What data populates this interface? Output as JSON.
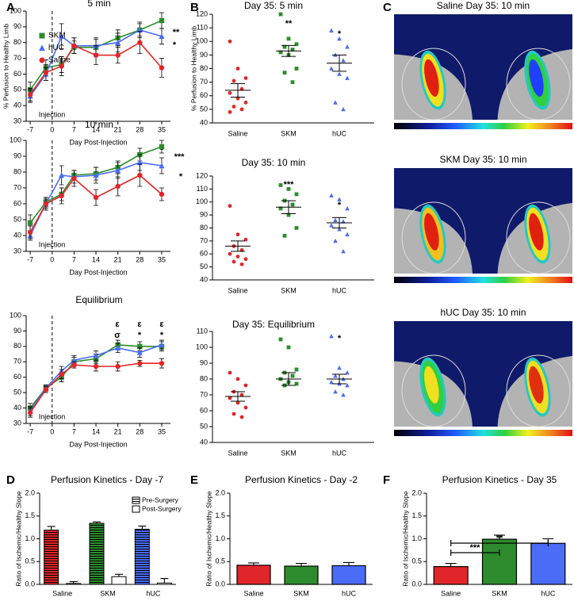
{
  "panel_labels": [
    "A",
    "B",
    "C",
    "D",
    "E",
    "F"
  ],
  "images": [
    {
      "title": "Saline Day 35: 10 min"
    },
    {
      "title": "SKM Day 35: 10 min"
    },
    {
      "title": "hUC Day 35: 10 min"
    }
  ],
  "chart_data": [
    {
      "type": "line",
      "title": "5 min",
      "xlabel": "Day Post-Injection",
      "ylabel": "% Perfusion to Healthy Limb",
      "x": [
        -7,
        -2,
        3,
        7,
        14,
        21,
        28,
        35
      ],
      "xlim": [
        -8.3,
        37.8
      ],
      "xticks": [
        -7,
        0,
        7,
        14,
        21,
        28,
        35
      ],
      "ylim": [
        30,
        100
      ],
      "yticks": [
        30,
        40,
        50,
        60,
        70,
        80,
        90,
        100
      ],
      "vline": 0,
      "vline_label": "Injection",
      "legend": "upper left",
      "series": [
        {
          "name": "SKM",
          "color": "#2e8b2e",
          "marker": "square",
          "values": [
            50,
            64,
            66,
            77,
            77,
            83,
            88,
            94
          ],
          "errors": [
            5,
            5,
            5,
            4,
            5,
            5,
            4,
            5
          ]
        },
        {
          "name": "hUC",
          "color": "#4a6cf7",
          "marker": "triangle",
          "values": [
            46,
            60,
            84,
            78,
            78,
            80,
            88,
            84
          ],
          "errors": [
            4,
            4,
            8,
            5,
            5,
            6,
            5,
            5
          ]
        },
        {
          "name": "Saline",
          "color": "#e0262a",
          "marker": "circle",
          "values": [
            47,
            61,
            65,
            78,
            72,
            72,
            80,
            64
          ],
          "errors": [
            4,
            5,
            6,
            5,
            6,
            5,
            7,
            6
          ]
        }
      ],
      "annotations": [
        {
          "text": "**",
          "color": "#2e8b2e"
        },
        {
          "text": "*",
          "color": "#4a6cf7"
        }
      ]
    },
    {
      "type": "line",
      "title": "10 min",
      "xlabel": "Day Post-Injection",
      "x": [
        -7,
        -2,
        3,
        7,
        14,
        21,
        28,
        35
      ],
      "xlim": [
        -8.3,
        37.8
      ],
      "xticks": [
        -7,
        0,
        7,
        14,
        21,
        28,
        35
      ],
      "ylim": [
        30,
        100
      ],
      "yticks": [
        30,
        40,
        50,
        60,
        70,
        80,
        90,
        100
      ],
      "vline": 0,
      "vline_label": "Injection",
      "series": [
        {
          "name": "SKM",
          "color": "#2e8b2e",
          "marker": "square",
          "values": [
            48,
            61,
            66,
            78,
            79,
            83,
            91,
            96
          ],
          "errors": [
            5,
            3,
            4,
            3,
            4,
            4,
            4,
            4
          ]
        },
        {
          "name": "hUC",
          "color": "#4a6cf7",
          "marker": "triangle",
          "values": [
            40,
            60,
            78,
            77,
            78,
            81,
            86,
            84
          ],
          "errors": [
            3,
            4,
            6,
            4,
            5,
            5,
            5,
            5
          ]
        },
        {
          "name": "Saline",
          "color": "#e0262a",
          "marker": "circle",
          "values": [
            42,
            60,
            65,
            76,
            64,
            71,
            78,
            66
          ],
          "errors": [
            4,
            3,
            5,
            5,
            5,
            6,
            7,
            4
          ]
        }
      ],
      "annotations": [
        {
          "text": "ε",
          "color": "#2e8b2e"
        },
        {
          "text": "***",
          "color": "#2e8b2e"
        },
        {
          "text": "*",
          "color": "#4a6cf7"
        }
      ]
    },
    {
      "type": "line",
      "title": "Equilibrium",
      "xlabel": "Day Post-Injection",
      "x": [
        -7,
        -2,
        3,
        7,
        14,
        21,
        28,
        35
      ],
      "xlim": [
        -8.3,
        37.8
      ],
      "xticks": [
        -7,
        0,
        7,
        14,
        21,
        28,
        35
      ],
      "ylim": [
        30,
        100
      ],
      "yticks": [
        30,
        40,
        50,
        60,
        70,
        80,
        90,
        100
      ],
      "vline": 0,
      "vline_label": "Injection",
      "series": [
        {
          "name": "SKM",
          "color": "#2e8b2e",
          "marker": "square",
          "values": [
            40,
            53,
            60,
            70,
            72,
            81,
            80,
            80
          ],
          "errors": [
            3,
            2,
            3,
            3,
            3,
            3,
            3,
            3
          ]
        },
        {
          "name": "hUC",
          "color": "#4a6cf7",
          "marker": "triangle",
          "values": [
            38,
            53,
            64,
            71,
            74,
            79,
            76,
            81
          ],
          "errors": [
            3,
            2,
            3,
            3,
            3,
            3,
            3,
            3
          ]
        },
        {
          "name": "Saline",
          "color": "#e0262a",
          "marker": "circle",
          "values": [
            37,
            52,
            62,
            68,
            67,
            67,
            69,
            69
          ],
          "errors": [
            3,
            2,
            3,
            2,
            3,
            3,
            2,
            3
          ]
        }
      ],
      "annotations": [
        {
          "text": "ε",
          "color": "#2e8b2e"
        },
        {
          "text": "ε",
          "color": "#2e8b2e"
        },
        {
          "text": "ε",
          "color": "#2e8b2e"
        },
        {
          "text": "σ",
          "color": "#000000"
        },
        {
          "text": "*",
          "color": "#2e8b2e"
        },
        {
          "text": "*",
          "color": "#4a6cf7"
        }
      ]
    },
    {
      "type": "strip",
      "title": "Day 35: 5 min",
      "ylabel": "% Perfusion to Healthy Limb",
      "categories": [
        "Saline",
        "SKM",
        "hUC"
      ],
      "colors": [
        "#e0262a",
        "#2e8b2e",
        "#4a6cf7"
      ],
      "markers": [
        "circle",
        "square",
        "triangle"
      ],
      "ylim": [
        40,
        120
      ],
      "yticks": [
        40,
        50,
        60,
        70,
        80,
        90,
        100,
        110,
        120
      ],
      "points": [
        [
          100,
          80,
          73,
          71,
          65,
          62,
          58,
          55,
          52,
          50,
          48
        ],
        [
          120,
          102,
          98,
          96,
          94,
          92,
          90,
          80,
          77,
          70
        ],
        [
          108,
          102,
          96,
          90,
          86,
          80,
          76,
          73,
          55,
          50
        ]
      ],
      "mean": [
        64,
        93,
        84
      ],
      "sem": [
        5,
        4,
        6
      ],
      "annotations": [
        {
          "text": "**",
          "color": "#000000"
        },
        {
          "text": "*",
          "color": "#000000"
        }
      ]
    },
    {
      "type": "strip",
      "title": "Day 35: 10 min",
      "categories": [
        "Saline",
        "SKM",
        "hUC"
      ],
      "colors": [
        "#e0262a",
        "#2e8b2e",
        "#4a6cf7"
      ],
      "markers": [
        "circle",
        "square",
        "triangle"
      ],
      "ylim": [
        40,
        120
      ],
      "yticks": [
        40,
        50,
        60,
        70,
        80,
        90,
        100,
        110,
        120
      ],
      "points": [
        [
          97,
          75,
          71,
          66,
          63,
          60,
          58,
          56,
          54,
          52
        ],
        [
          113,
          110,
          106,
          101,
          98,
          95,
          90,
          80,
          74
        ],
        [
          105,
          102,
          95,
          86,
          85,
          82,
          79,
          75,
          70,
          62
        ]
      ],
      "mean": [
        66,
        96,
        84
      ],
      "sem": [
        4,
        5,
        4
      ],
      "annotations": [
        {
          "text": "***",
          "color": "#000000"
        },
        {
          "text": "*",
          "color": "#000000"
        }
      ]
    },
    {
      "type": "strip",
      "title": "Day 35: Equilibrium",
      "categories": [
        "Saline",
        "SKM",
        "hUC"
      ],
      "colors": [
        "#e0262a",
        "#2e8b2e",
        "#4a6cf7"
      ],
      "markers": [
        "circle",
        "square",
        "triangle"
      ],
      "ylim": [
        40,
        110
      ],
      "yticks": [
        40,
        50,
        60,
        70,
        80,
        90,
        100,
        110
      ],
      "points": [
        [
          84,
          80,
          76,
          72,
          70,
          68,
          65,
          62,
          58,
          56
        ],
        [
          105,
          100,
          86,
          84,
          82,
          80,
          78,
          77,
          76
        ],
        [
          107,
          87,
          84,
          82,
          80,
          78,
          77,
          76,
          72,
          70
        ]
      ],
      "mean": [
        69,
        80,
        80
      ],
      "sem": [
        3,
        4,
        3
      ],
      "annotations": [
        {
          "text": "*",
          "color": "#000000"
        }
      ]
    },
    {
      "type": "groupbar",
      "title": "Perfusion Kinetics - Day -7",
      "ylabel": "Ratio of Ischemic/Healthy Slope",
      "categories": [
        "Saline",
        "SKM",
        "hUC"
      ],
      "colors": [
        "#e0262a",
        "#2e8b2e",
        "#4a6cf7"
      ],
      "ylim": [
        0,
        2
      ],
      "yticks": [
        {
          "value": 0,
          "label": "0.0"
        },
        0.5,
        {
          "value": 1,
          "label": "1.0"
        },
        1.5,
        {
          "value": 2,
          "label": "2.0"
        }
      ],
      "legend": "upper right",
      "series": [
        {
          "name": "Pre-Surgery",
          "pattern": "striped",
          "values": [
            1.19,
            1.34,
            1.21
          ],
          "errors": [
            0.08,
            0.03,
            0.07
          ]
        },
        {
          "name": "Post-Surgery",
          "pattern": "open",
          "values": [
            0.02,
            0.17,
            0.03
          ],
          "errors": [
            0.04,
            0.05,
            0.1
          ]
        }
      ]
    },
    {
      "type": "bar",
      "title": "Perfusion Kinetics - Day -2",
      "ylabel": "Ratio of Ischemic/Healthy Slope",
      "categories": [
        "Saline",
        "SKM",
        "hUC"
      ],
      "colors": [
        "#e0262a",
        "#2e8b2e",
        "#4a6cf7"
      ],
      "ylim": [
        0,
        2
      ],
      "yticks": [
        {
          "value": 0,
          "label": "0.0"
        },
        0.5,
        {
          "value": 1,
          "label": "1.0"
        },
        1.5,
        {
          "value": 2,
          "label": "2.0"
        }
      ],
      "values": [
        0.42,
        0.4,
        0.41
      ],
      "errors": [
        0.05,
        0.06,
        0.07
      ]
    },
    {
      "type": "bar",
      "title": "Perfusion Kinetics - Day 35",
      "ylabel": "Ratio of Ischemic/Healthy Slope",
      "categories": [
        "Saline",
        "SKM",
        "hUC"
      ],
      "colors": [
        "#e0262a",
        "#2e8b2e",
        "#4a6cf7"
      ],
      "ylim": [
        0,
        2
      ],
      "yticks": [
        {
          "value": 0,
          "label": "0.0"
        },
        0.5,
        {
          "value": 1,
          "label": "1.0"
        },
        1.5,
        {
          "value": 2,
          "label": "2.0"
        }
      ],
      "values": [
        0.39,
        0.99,
        0.9
      ],
      "errors": [
        0.07,
        0.09,
        0.1
      ],
      "annotations": [
        {
          "text": "***",
          "color": "#000000"
        },
        {
          "text": "**",
          "color": "#000000"
        }
      ]
    }
  ]
}
